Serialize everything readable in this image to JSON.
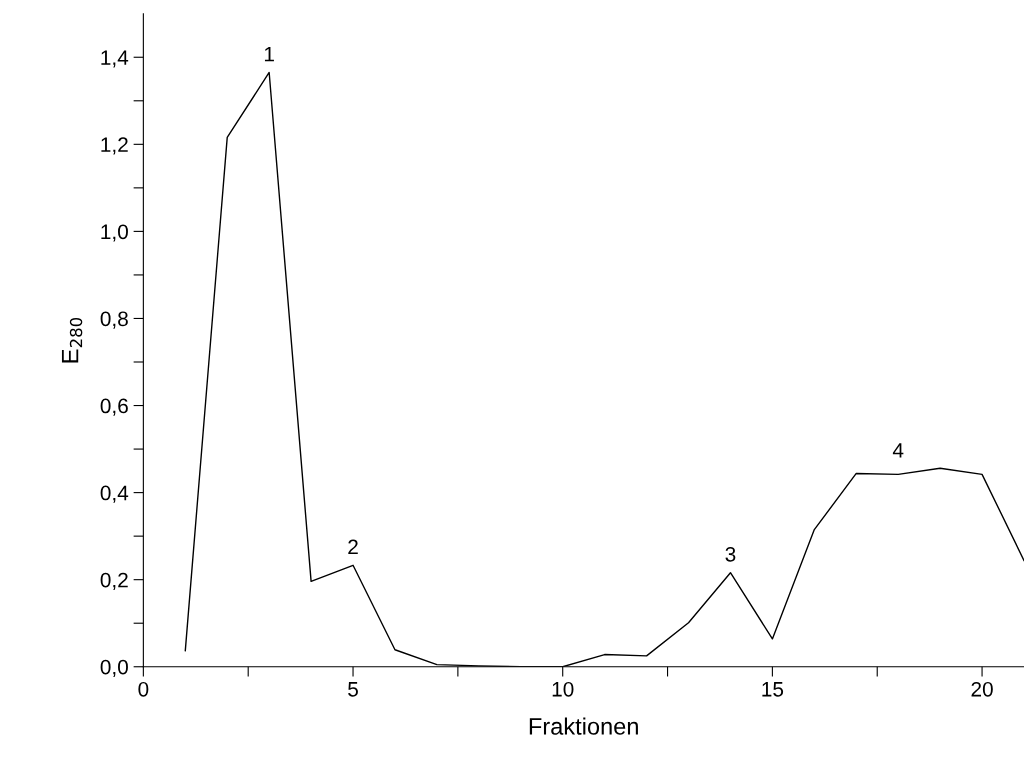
{
  "chart_data": {
    "type": "line",
    "xlabel": "Fraktionen",
    "ylabel": "E$_{280}$",
    "x": [
      1,
      2,
      3,
      4,
      5,
      6,
      7,
      8,
      9,
      10,
      11,
      12,
      13,
      14,
      15,
      16,
      17,
      18,
      19,
      20,
      21
    ],
    "series": [
      {
        "color": "#000000",
        "values": [
          0.037,
          1.216,
          1.365,
          0.196,
          0.233,
          0.039,
          0.005,
          0.002,
          0,
          0,
          0.028,
          0.025,
          0.101,
          0.216,
          0.064,
          0.315,
          0.444,
          0.442,
          0.456,
          0.442,
          0.244
        ]
      }
    ],
    "xlim": [
      0,
      21
    ],
    "ylim": [
      0,
      1.5
    ],
    "xticks": [
      0,
      {
        "value": 2.5,
        "label": null
      },
      5,
      {
        "value": 7.5,
        "label": null
      },
      10,
      {
        "value": 12.5,
        "label": null
      },
      15,
      {
        "value": 17.5,
        "label": null
      },
      20
    ],
    "yticks": [
      {
        "value": 0,
        "label": "0,0"
      },
      {
        "value": 0.1,
        "label": null
      },
      {
        "value": 0.2,
        "label": "0,2"
      },
      {
        "value": 0.3,
        "label": null
      },
      {
        "value": 0.4,
        "label": "0,4"
      },
      {
        "value": 0.5,
        "label": null
      },
      {
        "value": 0.6,
        "label": "0,6"
      },
      {
        "value": 0.7,
        "label": null
      },
      {
        "value": 0.8,
        "label": "0,8"
      },
      {
        "value": 0.9,
        "label": null
      },
      {
        "value": 1.0,
        "label": "1,0"
      },
      {
        "value": 1.1,
        "label": null
      },
      {
        "value": 1.2,
        "label": "1,2"
      },
      {
        "value": 1.3,
        "label": null
      },
      {
        "value": 1.4,
        "label": "1,4"
      }
    ],
    "annotations": [
      {
        "text": "1",
        "x": 3,
        "y": 1.365
      },
      {
        "text": "2",
        "x": 5,
        "y": 0.233
      },
      {
        "text": "3",
        "x": 14,
        "y": 0.216
      },
      {
        "text": "4",
        "x": 18,
        "y": 0.442
      }
    ],
    "grid": false,
    "legend": false,
    "marker": "none",
    "line_style": "solid"
  }
}
